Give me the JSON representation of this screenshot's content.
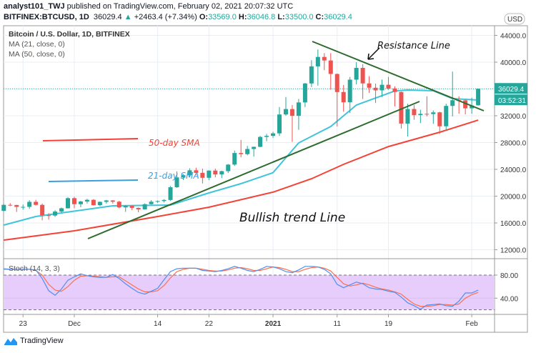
{
  "header": {
    "author": "analyst101_TWJ",
    "published": "published on TradingView.com, February 02, 2021 20:07:32 UTC",
    "symbol": "BITFINEX:BTCUSD, 1D",
    "last": "36029.4",
    "change": "+2463.4 (+7.34%)",
    "o_label": "O:",
    "o": "33569.0",
    "h_label": "H:",
    "h": "36046.8",
    "l_label": "L:",
    "l": "33500.0",
    "c_label": "C:",
    "c": "36029.4"
  },
  "legend": {
    "title": "Bitcoin / U.S. Dollar, 1D, BITFINEX",
    "ma21": "MA (21, close, 0)",
    "ma50": "MA (50, close, 0)",
    "stoch": "Stoch (14, 3, 3)"
  },
  "price_axis": {
    "currency": "USD",
    "ticks": [
      "44000.0",
      "40000.0",
      "32000.0",
      "28000.0",
      "24000.0",
      "20000.0",
      "16000.0",
      "12000.0"
    ],
    "last_price_label": "36029.4",
    "countdown": "03:52:31"
  },
  "stoch_axis": {
    "ticks": [
      "80.00",
      "40.00"
    ]
  },
  "time_axis": {
    "ticks": [
      {
        "label": "23",
        "date": "2020-11-23",
        "bold": false
      },
      {
        "label": "Dec",
        "date": "2020-12-01",
        "bold": false
      },
      {
        "label": "14",
        "date": "2020-12-14",
        "bold": false
      },
      {
        "label": "22",
        "date": "2020-12-22",
        "bold": false
      },
      {
        "label": "2021",
        "date": "2021-01-01",
        "bold": true
      },
      {
        "label": "11",
        "date": "2021-01-11",
        "bold": false
      },
      {
        "label": "19",
        "date": "2021-01-19",
        "bold": false
      },
      {
        "label": "Feb",
        "date": "2021-02-01",
        "bold": false
      }
    ]
  },
  "annotations": {
    "resistance": "Resistance Line",
    "bullish": "Bullish trend Line",
    "sma50": "50-day SMA",
    "sma21": "21-day SMA"
  },
  "colors": {
    "up": "#26a69a",
    "down": "#ef5350",
    "ma21": "#3fc4da",
    "ma50": "#f44336",
    "stoch_k": "#4f8ff0",
    "stoch_d": "#ff6e4a",
    "trendline": "#2e6b2e",
    "stoch_band": "#e7cdfc"
  },
  "branding": {
    "name": "TradingView"
  },
  "chart_data": {
    "type": "candlestick",
    "ylim": [
      12000,
      44000
    ],
    "grid": true,
    "dates": [
      "2020-11-20",
      "2020-11-21",
      "2020-11-22",
      "2020-11-23",
      "2020-11-24",
      "2020-11-25",
      "2020-11-26",
      "2020-11-27",
      "2020-11-28",
      "2020-11-29",
      "2020-11-30",
      "2020-12-01",
      "2020-12-02",
      "2020-12-03",
      "2020-12-04",
      "2020-12-05",
      "2020-12-06",
      "2020-12-07",
      "2020-12-08",
      "2020-12-09",
      "2020-12-10",
      "2020-12-11",
      "2020-12-12",
      "2020-12-13",
      "2020-12-14",
      "2020-12-15",
      "2020-12-16",
      "2020-12-17",
      "2020-12-18",
      "2020-12-19",
      "2020-12-20",
      "2020-12-21",
      "2020-12-22",
      "2020-12-23",
      "2020-12-24",
      "2020-12-25",
      "2020-12-26",
      "2020-12-27",
      "2020-12-28",
      "2020-12-29",
      "2020-12-30",
      "2020-12-31",
      "2021-01-01",
      "2021-01-02",
      "2021-01-03",
      "2021-01-04",
      "2021-01-05",
      "2021-01-06",
      "2021-01-07",
      "2021-01-08",
      "2021-01-09",
      "2021-01-10",
      "2021-01-11",
      "2021-01-12",
      "2021-01-13",
      "2021-01-14",
      "2021-01-15",
      "2021-01-16",
      "2021-01-17",
      "2021-01-18",
      "2021-01-19",
      "2021-01-20",
      "2021-01-21",
      "2021-01-22",
      "2021-01-23",
      "2021-01-24",
      "2021-01-25",
      "2021-01-26",
      "2021-01-27",
      "2021-01-28",
      "2021-01-29",
      "2021-01-30",
      "2021-01-31",
      "2021-02-01",
      "2021-02-02"
    ],
    "ohlc": [
      [
        17800,
        18800,
        17750,
        18700
      ],
      [
        18700,
        18950,
        18500,
        18680
      ],
      [
        18680,
        18700,
        17650,
        18400
      ],
      [
        18400,
        18750,
        18000,
        18400
      ],
      [
        18400,
        19400,
        18100,
        19150
      ],
      [
        19150,
        19450,
        18600,
        18700
      ],
      [
        18700,
        18900,
        16400,
        17150
      ],
      [
        17150,
        17450,
        16500,
        17100
      ],
      [
        17100,
        17900,
        16900,
        17700
      ],
      [
        17700,
        18300,
        17550,
        18190
      ],
      [
        18190,
        19850,
        18150,
        19700
      ],
      [
        19700,
        19900,
        18200,
        18800
      ],
      [
        18800,
        19300,
        18350,
        19200
      ],
      [
        19200,
        19600,
        18900,
        19450
      ],
      [
        19450,
        19550,
        18600,
        18650
      ],
      [
        18650,
        19200,
        18500,
        19150
      ],
      [
        19150,
        19450,
        18900,
        19360
      ],
      [
        19360,
        19400,
        18900,
        19170
      ],
      [
        19170,
        19300,
        18200,
        18320
      ],
      [
        18320,
        18650,
        17650,
        18550
      ],
      [
        18550,
        18600,
        17900,
        18250
      ],
      [
        18250,
        18300,
        17600,
        18030
      ],
      [
        18030,
        18900,
        18000,
        18800
      ],
      [
        18800,
        19400,
        18750,
        19170
      ],
      [
        19170,
        19350,
        19000,
        19270
      ],
      [
        19270,
        19550,
        19050,
        19430
      ],
      [
        19430,
        21500,
        19300,
        21330
      ],
      [
        21330,
        23700,
        21250,
        22800
      ],
      [
        22800,
        23300,
        22400,
        23130
      ],
      [
        23130,
        24150,
        22800,
        23860
      ],
      [
        23860,
        24250,
        23100,
        23480
      ],
      [
        23480,
        24100,
        21900,
        22740
      ],
      [
        22740,
        23850,
        22400,
        23820
      ],
      [
        23820,
        24100,
        22800,
        23240
      ],
      [
        23240,
        23800,
        22700,
        23730
      ],
      [
        23730,
        24800,
        23450,
        24710
      ],
      [
        24710,
        26800,
        24500,
        26440
      ],
      [
        26440,
        28400,
        25800,
        26270
      ],
      [
        26270,
        27500,
        26100,
        27040
      ],
      [
        27040,
        27400,
        25900,
        27360
      ],
      [
        27360,
        29000,
        27300,
        28840
      ],
      [
        28840,
        29300,
        28200,
        29000
      ],
      [
        29000,
        29600,
        28700,
        29370
      ],
      [
        29370,
        33300,
        29000,
        32190
      ],
      [
        32190,
        34800,
        32000,
        33000
      ],
      [
        33000,
        33600,
        28100,
        31990
      ],
      [
        31990,
        34500,
        29900,
        33990
      ],
      [
        33990,
        36900,
        33300,
        36820
      ],
      [
        36820,
        40300,
        36300,
        39370
      ],
      [
        39370,
        41900,
        36500,
        40780
      ],
      [
        40780,
        41350,
        38800,
        40250
      ],
      [
        40250,
        41350,
        35900,
        38240
      ],
      [
        38240,
        38300,
        30400,
        35540
      ],
      [
        35540,
        36600,
        32600,
        34010
      ],
      [
        34010,
        37800,
        32400,
        37390
      ],
      [
        37390,
        40000,
        36700,
        39150
      ],
      [
        39150,
        39700,
        34500,
        36830
      ],
      [
        36830,
        37900,
        35400,
        36180
      ],
      [
        36180,
        36800,
        33900,
        35790
      ],
      [
        35790,
        37400,
        34800,
        36630
      ],
      [
        36630,
        37800,
        35900,
        36070
      ],
      [
        36070,
        36400,
        33400,
        35550
      ],
      [
        35550,
        35600,
        30100,
        30830
      ],
      [
        30830,
        33800,
        28900,
        33010
      ],
      [
        33010,
        33600,
        31400,
        32100
      ],
      [
        32100,
        32900,
        30900,
        32290
      ],
      [
        32290,
        34900,
        31900,
        32250
      ],
      [
        32250,
        32800,
        30800,
        32510
      ],
      [
        32510,
        32600,
        29300,
        30430
      ],
      [
        30430,
        33800,
        29900,
        33470
      ],
      [
        33470,
        38600,
        31900,
        34320
      ],
      [
        34320,
        34900,
        32300,
        34300
      ],
      [
        34300,
        34350,
        32200,
        33110
      ],
      [
        33110,
        34700,
        32300,
        33530
      ],
      [
        33569,
        36046.8,
        33500,
        36029.4
      ]
    ],
    "last_price": 36029.4,
    "ma21": [
      [
        "2020-11-20",
        15680
      ],
      [
        "2020-11-25",
        16960
      ],
      [
        "2020-12-07",
        18560
      ],
      [
        "2020-12-16",
        18670
      ],
      [
        "2020-12-22",
        20480
      ],
      [
        "2020-12-27",
        21870
      ],
      [
        "2021-01-01",
        23500
      ],
      [
        "2021-01-05",
        27950
      ],
      [
        "2021-01-10",
        30400
      ],
      [
        "2021-01-14",
        33600
      ],
      [
        "2021-01-20",
        35700
      ],
      [
        "2021-01-22",
        35840
      ],
      [
        "2021-01-26",
        35730
      ],
      [
        "2021-01-29",
        34560
      ],
      [
        "2021-02-02",
        34350
      ]
    ],
    "ma50": [
      [
        "2020-11-20",
        13440
      ],
      [
        "2020-12-01",
        14830
      ],
      [
        "2020-12-14",
        16960
      ],
      [
        "2020-12-22",
        18350
      ],
      [
        "2021-01-01",
        20600
      ],
      [
        "2021-01-07",
        22600
      ],
      [
        "2021-01-12",
        24750
      ],
      [
        "2021-01-19",
        27400
      ],
      [
        "2021-01-27",
        29550
      ],
      [
        "2021-02-02",
        31350
      ]
    ],
    "stoch": {
      "levels": [
        80,
        20
      ],
      "k": [
        91,
        90,
        90,
        90,
        90,
        89,
        74,
        53,
        45,
        56,
        71,
        77,
        82,
        79,
        77,
        76,
        76,
        81,
        74,
        65,
        57,
        50,
        47,
        52,
        57,
        72,
        86,
        91,
        92,
        92,
        92,
        88,
        87,
        86,
        88,
        91,
        95,
        92,
        88,
        86,
        90,
        95,
        94,
        91,
        86,
        84,
        89,
        95,
        95,
        94,
        90,
        82,
        64,
        58,
        63,
        68,
        65,
        58,
        56,
        55,
        52,
        50,
        42,
        32,
        27,
        21,
        28,
        29,
        30,
        27,
        26,
        35,
        49,
        49,
        54
      ],
      "d": [
        90,
        90,
        90,
        90,
        90,
        88,
        80,
        64,
        54,
        52,
        60,
        71,
        78,
        79,
        78,
        77,
        76,
        77,
        77,
        70,
        63,
        56,
        51,
        51,
        53,
        62,
        75,
        86,
        90,
        92,
        92,
        90,
        88,
        87,
        87,
        89,
        92,
        93,
        91,
        88,
        88,
        91,
        94,
        93,
        90,
        86,
        86,
        90,
        93,
        94,
        92,
        87,
        76,
        65,
        61,
        63,
        66,
        63,
        59,
        56,
        54,
        51,
        47,
        38,
        30,
        26,
        26,
        27,
        29,
        29,
        28,
        30,
        40,
        46,
        50
      ]
    }
  }
}
